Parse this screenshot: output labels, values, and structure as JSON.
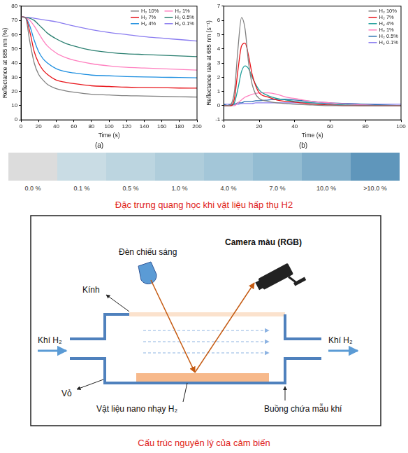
{
  "chart_data": [
    {
      "type": "line",
      "label": "(a)",
      "x_label": "Time (s)",
      "y_label": "Reflectance at 685 nm (%)",
      "x": [
        0,
        5,
        10,
        15,
        20,
        25,
        30,
        40,
        50,
        60,
        80,
        100,
        120,
        140,
        160,
        180,
        200
      ],
      "series": [
        {
          "name": "H₂ 10%",
          "color": "#808080",
          "values": [
            72.5,
            72,
            55,
            40,
            32,
            28,
            25,
            22,
            20.5,
            19.5,
            18,
            17.5,
            17,
            16.8,
            16.5,
            16.3,
            16
          ]
        },
        {
          "name": "H₂ 7%",
          "color": "#e8151b",
          "values": [
            72.5,
            72,
            62,
            48,
            40,
            35,
            32,
            28,
            26.5,
            25.5,
            24,
            23.5,
            23,
            22.8,
            22.6,
            22.4,
            22.3
          ]
        },
        {
          "name": "H₂ 4%",
          "color": "#1e8fe0",
          "values": [
            72.5,
            72,
            66,
            56,
            48,
            43,
            40,
            36,
            34,
            33,
            31.5,
            31,
            30.5,
            30.2,
            30,
            29.8,
            29.6
          ]
        },
        {
          "name": "H₂ 1%",
          "color": "#ff7fbf",
          "values": [
            72.5,
            72,
            70,
            66,
            61,
            56,
            52,
            47,
            44,
            42,
            39.5,
            38,
            37,
            36.5,
            36,
            35.5,
            35
          ]
        },
        {
          "name": "H₂ 0.5%",
          "color": "#2a7f70",
          "values": [
            72.5,
            72,
            71.5,
            70,
            67,
            64,
            61,
            57,
            54,
            52,
            49,
            47.5,
            46.5,
            46,
            45.5,
            45,
            44.5
          ]
        },
        {
          "name": "H₂ 0.1%",
          "color": "#8a7cf0",
          "values": [
            72.5,
            72.2,
            72,
            71.5,
            71,
            70.5,
            70,
            69,
            67.5,
            66,
            63.5,
            61.5,
            60,
            58.5,
            57.5,
            56.5,
            55.5
          ]
        }
      ],
      "xlim": [
        0,
        200
      ],
      "xticks": [
        0,
        20,
        40,
        60,
        80,
        100,
        120,
        140,
        160,
        180,
        200
      ],
      "ylim": [
        0,
        80
      ],
      "yticks": [
        0,
        10,
        20,
        30,
        40,
        50,
        60,
        70,
        80
      ],
      "grid": false,
      "legend": "upper right"
    },
    {
      "type": "line",
      "label": "(b)",
      "x_label": "Time (s)",
      "y_label": "Reflectance rate at 685 nm (s⁻¹)",
      "x": [
        0,
        2,
        4,
        6,
        8,
        10,
        12,
        14,
        16,
        18,
        20,
        25,
        30,
        35,
        40,
        50,
        60,
        70,
        80,
        90,
        100
      ],
      "series": [
        {
          "name": "H₂ 10%",
          "color": "#808080",
          "values": [
            0,
            0,
            0.1,
            1,
            4,
            6.2,
            5.4,
            3,
            1.5,
            0.8,
            0.5,
            0.3,
            0.2,
            0.15,
            0.1,
            0.05,
            0,
            0,
            0,
            0,
            0
          ]
        },
        {
          "name": "H₂ 7%",
          "color": "#e8151b",
          "values": [
            0,
            0,
            0,
            0.5,
            2.5,
            4.2,
            4.4,
            3.5,
            2.2,
            1.4,
            0.9,
            0.6,
            0.4,
            0.3,
            0.25,
            0.1,
            0.05,
            0,
            0,
            0,
            0
          ]
        },
        {
          "name": "H₂ 4%",
          "color": "#1f9f9a",
          "values": [
            0,
            0,
            0,
            0.2,
            1.2,
            2.4,
            2.8,
            2.6,
            2,
            1.5,
            1.1,
            0.7,
            0.5,
            0.4,
            0.3,
            0.2,
            0.1,
            0.05,
            0,
            0,
            0
          ]
        },
        {
          "name": "H₂ 1%",
          "color": "#ff7fbf",
          "values": [
            0,
            0,
            0,
            0,
            0.2,
            0.4,
            0.6,
            0.7,
            0.8,
            0.85,
            0.9,
            0.9,
            0.8,
            0.6,
            0.5,
            0.3,
            0.2,
            0.1,
            0.05,
            0,
            0
          ]
        },
        {
          "name": "H₂ 0.5%",
          "color": "#2a6fb0",
          "values": [
            0.1,
            0,
            0.1,
            0.1,
            0.2,
            0.2,
            0.3,
            0.3,
            0.3,
            0.35,
            0.35,
            0.4,
            0.45,
            0.45,
            0.4,
            0.3,
            0.2,
            0.15,
            0.1,
            0.05,
            0
          ]
        },
        {
          "name": "H₂ 0.1%",
          "color": "#8a7cf0",
          "values": [
            0.1,
            0.1,
            0.1,
            0.1,
            0.1,
            0.15,
            0.15,
            0.15,
            0.15,
            0.2,
            0.2,
            0.2,
            0.2,
            0.2,
            0.2,
            0.2,
            0.15,
            0.15,
            0.1,
            0.1,
            0.1
          ]
        }
      ],
      "xlim": [
        0,
        100
      ],
      "xticks": [
        0,
        20,
        40,
        60,
        80,
        100
      ],
      "ylim": [
        -1,
        7
      ],
      "yticks": [
        -1,
        0,
        1,
        2,
        3,
        4,
        5,
        6,
        7
      ],
      "grid": false,
      "legend": "upper right"
    }
  ],
  "color_scale": {
    "labels": [
      "0.0 %",
      "0.1 %",
      "0.5 %",
      "1.0 %",
      "4.0 %",
      "7.0 %",
      "10.0 %",
      ">10.0 %"
    ],
    "colors": [
      "#dcdcdc",
      "#c9dce4",
      "#bcd5e0",
      "#afcddb",
      "#a3c6d8",
      "#93bcd2",
      "#7fadc9",
      "#5f96bb"
    ],
    "caption": "Đặc trưng quang học khi vật liệu hấp thụ H2"
  },
  "diagram": {
    "lamp": "Đèn chiếu sáng",
    "camera": "Camera màu (RGB)",
    "glass": "Kính",
    "gas_in": "Khí H₂",
    "gas_out": "Khí H₂",
    "shell": "Vỏ",
    "material": "Vật liệu nano nhạy H₂",
    "chamber": "Buồng chứa mẫu khí",
    "caption": "Cấu trúc nguyên lý của cảm biến"
  }
}
